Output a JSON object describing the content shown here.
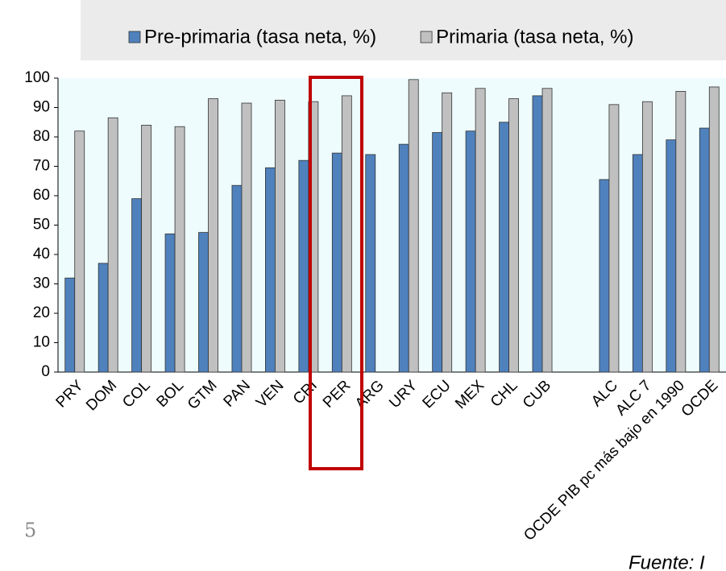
{
  "chart_data": {
    "type": "bar",
    "categories": [
      "PRY",
      "DOM",
      "COL",
      "BOL",
      "GTM",
      "PAN",
      "VEN",
      "CRI",
      "PER",
      "ARG",
      "URY",
      "ECU",
      "MEX",
      "CHL",
      "CUB",
      null,
      "ALC",
      "ALC 7",
      "OCDE PIB pc más bajo en 1990",
      "OCDE"
    ],
    "series": [
      {
        "name": "Pre-primaria (tasa neta, %)",
        "color": "#4f81bd",
        "values": [
          32,
          37,
          59,
          47,
          47.5,
          63.5,
          69.5,
          72,
          74.5,
          74,
          77.5,
          81.5,
          82,
          85,
          94,
          null,
          65.5,
          74,
          79,
          83
        ]
      },
      {
        "name": "Primaria (tasa neta, %)",
        "color": "#c0c0c0",
        "values": [
          82,
          86.5,
          84,
          83.5,
          93,
          91.5,
          92.5,
          92,
          94,
          null,
          99.5,
          95,
          96.5,
          93,
          96.5,
          null,
          91,
          92,
          95.5,
          97
        ]
      }
    ],
    "ylim": [
      0,
      100
    ],
    "yticks": [
      0,
      10,
      20,
      30,
      40,
      50,
      60,
      70,
      80,
      90,
      100
    ],
    "grid": false,
    "legend": "top"
  },
  "page_number": "5",
  "footer": "Fuente: I"
}
